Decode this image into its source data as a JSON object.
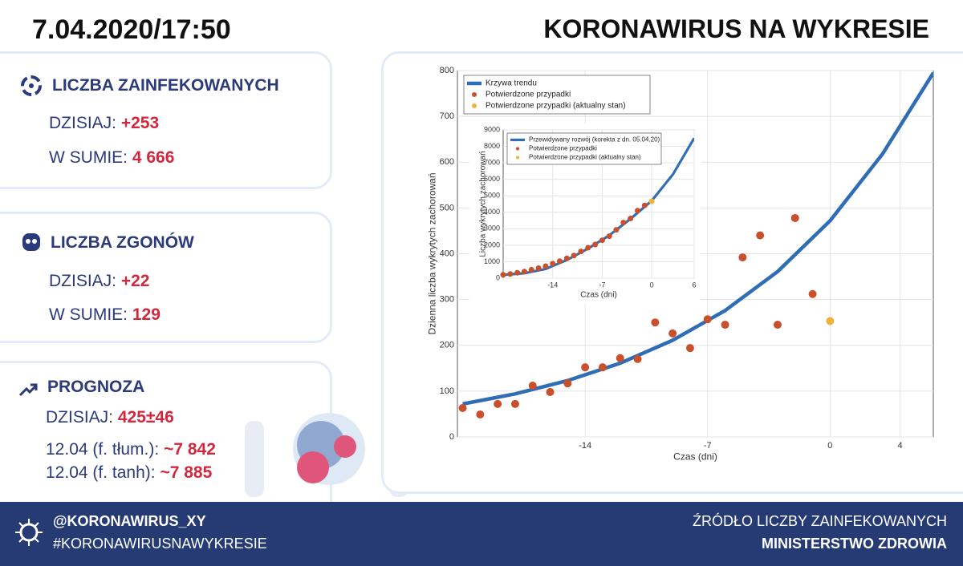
{
  "header": {
    "date": "7.04.2020/17:50",
    "title": "KORONAWIRUS NA WYKRESIE"
  },
  "panels": [
    {
      "title": "LICZBA ZAINFEKOWANYCH",
      "rows": [
        {
          "label": "DZISIAJ:",
          "value": "+253"
        },
        {
          "label": "W SUMIE:",
          "value": "4 666"
        }
      ]
    },
    {
      "title": "LICZBA ZGONÓW",
      "rows": [
        {
          "label": "DZISIAJ:",
          "value": "+22"
        },
        {
          "label": "W SUMIE:",
          "value": "129"
        }
      ]
    },
    {
      "title": "PROGNOZA",
      "rows": [
        {
          "label": "DZISIAJ:",
          "value": "425±46"
        },
        {
          "label": "12.04 (f. tłum.):",
          "value": "~7 842"
        },
        {
          "label": "12.04 (f. tanh):",
          "value": "~7 885"
        }
      ]
    }
  ],
  "footer": {
    "handle": "@KORONAWIRUS_XY",
    "hashtag": "#KORONAWIRUSNAWYKRESIE",
    "source_label": "ŹRÓDŁO LICZBY ZAINFEKOWANYCH",
    "source": "MINISTERSTWO ZDROWIA"
  },
  "chart_data": [
    {
      "type": "line",
      "x_label": "Czas (dni)",
      "y_label": "Dzienna liczba wykrytych zachorowań",
      "xlim": [
        -21.3,
        5.9
      ],
      "ylim": [
        0,
        800
      ],
      "xticks": [
        -14,
        -7,
        0,
        4
      ],
      "yticks": [
        0,
        100,
        200,
        300,
        400,
        500,
        600,
        700,
        800
      ],
      "grid": true,
      "legend": "upper left",
      "series": [
        {
          "name": "Krzywa trendu",
          "type": "line",
          "color": "#2f6db5",
          "x": [
            -21,
            -18,
            -15,
            -12,
            -9,
            -6,
            -3,
            0,
            3,
            5.9
          ],
          "values": [
            72,
            94,
            123,
            161,
            211,
            276,
            361,
            472,
            618,
            795
          ]
        },
        {
          "name": "Potwierdzone przypadki",
          "type": "scatter",
          "color": "#c9502b",
          "x": [
            -21,
            -20,
            -19,
            -18,
            -17,
            -16,
            -15,
            -14,
            -13,
            -12,
            -11,
            -10,
            -9,
            -8,
            -7,
            -6,
            -5,
            -4,
            -3,
            -2,
            -1
          ],
          "values": [
            63,
            49,
            72,
            72,
            112,
            98,
            117,
            152,
            152,
            172,
            170,
            250,
            226,
            194,
            257,
            245,
            392,
            440,
            245,
            478,
            312
          ]
        },
        {
          "name": "Potwierdzone przypadki (aktualny stan)",
          "type": "scatter",
          "color": "#f0b43c",
          "x": [
            0
          ],
          "values": [
            253
          ]
        }
      ]
    },
    {
      "type": "line",
      "x_label": "Czas (dni)",
      "y_label": "Liczba wykrytych zachorowań",
      "xlim": [
        -21,
        6
      ],
      "ylim": [
        0,
        9000
      ],
      "xticks": [
        -14,
        -7,
        0,
        6
      ],
      "yticks": [
        0,
        1000,
        2000,
        3000,
        4000,
        5000,
        6000,
        7000,
        8000,
        9000
      ],
      "grid": true,
      "legend": "upper left",
      "series": [
        {
          "name": "Przewidywany rozwój (korekta z dn. 05.04.20)",
          "type": "line",
          "color": "#2f6db5",
          "x": [
            -21,
            -18,
            -15,
            -12,
            -9,
            -6,
            -3,
            0,
            3,
            6
          ],
          "values": [
            200,
            300,
            560,
            1100,
            1800,
            2600,
            3600,
            4700,
            6300,
            8500
          ]
        },
        {
          "name": "Potwierdzone przypadki",
          "type": "scatter",
          "color": "#c9502b",
          "x": [
            -21,
            -20,
            -19,
            -18,
            -17,
            -16,
            -15,
            -14,
            -13,
            -12,
            -11,
            -10,
            -9,
            -8,
            -7,
            -6,
            -5,
            -4,
            -3,
            -2,
            -1
          ],
          "values": [
            208,
            257,
            329,
            401,
            513,
            611,
            728,
            880,
            1032,
            1204,
            1374,
            1624,
            1850,
            2044,
            2301,
            2546,
            2938,
            3378,
            3623,
            4101,
            4413
          ]
        },
        {
          "name": "Potwierdzone przypadki (aktualny stan)",
          "type": "scatter",
          "color": "#f0b43c",
          "x": [
            0
          ],
          "values": [
            4666
          ]
        }
      ]
    }
  ]
}
